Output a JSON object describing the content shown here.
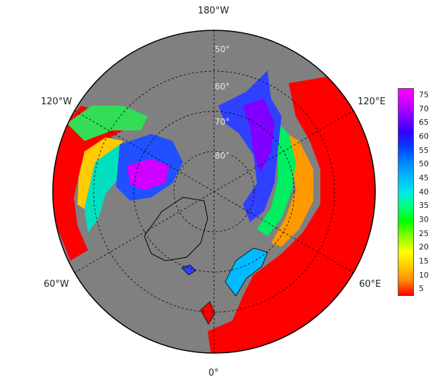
{
  "longitude_labels": {
    "top": "180°W",
    "upper_left": "120°W",
    "upper_right": "120°E",
    "lower_left": "60°W",
    "lower_right": "60°E",
    "bottom": "0°"
  },
  "latitude_labels": [
    "50°",
    "60°",
    "70°",
    "80°"
  ],
  "colorbar": {
    "ticks": [
      "75",
      "70",
      "65",
      "60",
      "55",
      "50",
      "45",
      "40",
      "35",
      "30",
      "25",
      "20",
      "15",
      "10",
      "5"
    ],
    "colors": [
      "#ff00ff",
      "#c800ff",
      "#8000ff",
      "#3000ff",
      "#0044ff",
      "#0088ff",
      "#00bbff",
      "#00e8e8",
      "#00ff80",
      "#00ff00",
      "#80ff00",
      "#ffff00",
      "#ffcc00",
      "#ff8800",
      "#ff0000"
    ]
  },
  "colors": {
    "ocean": "#808080",
    "low_value": "#ff0000",
    "gridline": "#000000"
  }
}
